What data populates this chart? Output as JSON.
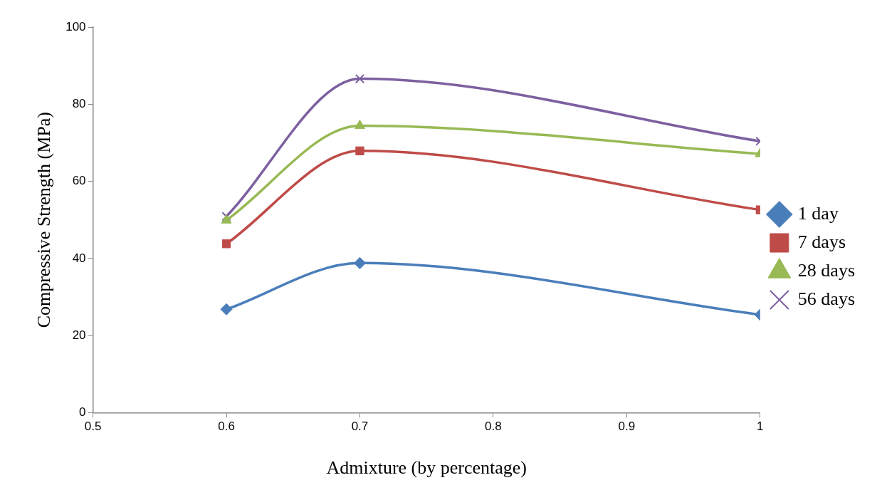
{
  "chart_data": {
    "type": "line",
    "xlabel": "Admixture (by percentage)",
    "ylabel": "Compressive Strength (MPa)",
    "x": [
      0.6,
      0.7,
      1
    ],
    "series": [
      {
        "name": "1 day",
        "color": "#4a7ebb",
        "values": [
          26.8,
          38.8,
          25.4
        ],
        "marker": "diamond"
      },
      {
        "name": "7 days",
        "color": "#be4b48",
        "values": [
          43.8,
          67.9,
          52.6
        ],
        "marker": "square"
      },
      {
        "name": "28 days",
        "color": "#98b954",
        "values": [
          49.9,
          74.4,
          67.1
        ],
        "marker": "triangle"
      },
      {
        "name": "56 days",
        "color": "#7d60a0",
        "values": [
          50.9,
          86.6,
          70.4
        ],
        "marker": "cross"
      }
    ],
    "xlim": [
      0.5,
      1
    ],
    "xticks": [
      0.5,
      0.6,
      0.7,
      0.8,
      0.9,
      1
    ],
    "ylim": [
      0,
      100
    ],
    "yticks": [
      0,
      20,
      40,
      60,
      80,
      100
    ],
    "grid": false,
    "legend": "right",
    "line_style": "solid"
  }
}
